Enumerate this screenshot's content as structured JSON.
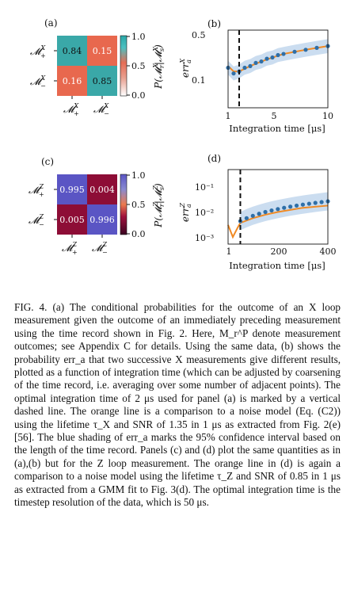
{
  "panels": {
    "a": {
      "label": "(a)",
      "rows": [
        "M+X",
        "M−X"
      ],
      "cols": [
        "M+X",
        "M−X"
      ],
      "values": [
        [
          0.84,
          0.15
        ],
        [
          0.16,
          0.85
        ]
      ],
      "value_labels": [
        [
          "0.84",
          "0.15"
        ],
        [
          "0.16",
          "0.85"
        ]
      ],
      "cbar_ticks": [
        "1.0",
        "0.5",
        "0.0"
      ],
      "cbar_label": "P(M_r^X | M_s^X)"
    },
    "c": {
      "label": "(c)",
      "rows": [
        "M+Z",
        "M−Z"
      ],
      "cols": [
        "M+Z",
        "M−Z"
      ],
      "values": [
        [
          0.995,
          0.004
        ],
        [
          0.005,
          0.996
        ]
      ],
      "value_labels": [
        [
          "0.995",
          "0.004"
        ],
        [
          "0.005",
          "0.996"
        ]
      ],
      "cbar_ticks": [
        "1.0",
        "0.5",
        "0.0"
      ],
      "cbar_label": "P(M_r^Z | M_s^Z)"
    },
    "b": {
      "label": "(b)",
      "ylabel": "err_a^X",
      "xlabel": "Integration time [μs]",
      "xticks": [
        "1",
        "5",
        "10"
      ],
      "yticks": [
        "0.5",
        "0.1"
      ]
    },
    "d": {
      "label": "(d)",
      "ylabel": "err_a^Z",
      "xlabel": "Integration time [μs]",
      "xticks": [
        "1",
        "200",
        "400"
      ],
      "yticks": [
        "10⁻¹",
        "10⁻²",
        "10⁻³"
      ]
    }
  },
  "chart_data": [
    {
      "type": "line",
      "panel": "b",
      "xlabel": "Integration time [μs]",
      "ylabel": "err_a^X",
      "xlim": [
        1,
        10
      ],
      "ylim": [
        0.05,
        0.6
      ],
      "yscale": "log",
      "dashed_marker_x": 2,
      "series": [
        {
          "kind": "points",
          "x": [
            1,
            1.5,
            2,
            2.5,
            3,
            3.5,
            4,
            4.5,
            5,
            5.5,
            6,
            7,
            8,
            9,
            10
          ],
          "y": [
            0.18,
            0.15,
            0.16,
            0.18,
            0.19,
            0.21,
            0.22,
            0.24,
            0.25,
            0.27,
            0.28,
            0.3,
            0.32,
            0.34,
            0.36
          ]
        },
        {
          "kind": "curve",
          "x": [
            1,
            1.5,
            2,
            3,
            4,
            5,
            6,
            8,
            10
          ],
          "y": [
            0.19,
            0.16,
            0.16,
            0.19,
            0.22,
            0.25,
            0.28,
            0.32,
            0.36
          ]
        }
      ]
    },
    {
      "type": "line",
      "panel": "d",
      "xlabel": "Integration time [μs]",
      "ylabel": "err_a^Z",
      "xlim": [
        1,
        400
      ],
      "ylim": [
        0.0007,
        0.2
      ],
      "yscale": "log",
      "dashed_marker_x": 50,
      "series": [
        {
          "kind": "points",
          "x": [
            50,
            75,
            100,
            125,
            150,
            175,
            200,
            225,
            250,
            275,
            300,
            325,
            350,
            375,
            400
          ],
          "y": [
            0.004,
            0.005,
            0.006,
            0.007,
            0.008,
            0.009,
            0.01,
            0.011,
            0.012,
            0.013,
            0.014,
            0.015,
            0.016,
            0.017,
            0.018
          ]
        },
        {
          "kind": "curve",
          "x": [
            1,
            20,
            40,
            50,
            100,
            150,
            200,
            300,
            400
          ],
          "y": [
            0.003,
            0.0012,
            0.0025,
            0.0035,
            0.005,
            0.0065,
            0.008,
            0.011,
            0.013
          ]
        }
      ]
    }
  ],
  "caption": {
    "label": "FIG. 4.",
    "text": "(a) The conditional probabilities for the outcome of an X loop measurement given the outcome of an immediately preceding measurement using the time record shown in Fig. 2. Here, M_r^P denote measurement outcomes; see Appendix C for details. Using the same data, (b) shows the probability err_a that two successive X measurements give different results, plotted as a function of integration time (which can be adjusted by coarsening of the time record, i.e. averaging over some number of adjacent points). The optimal integration time of 2 μs used for panel (a) is marked by a vertical dashed line. The orange line is a comparison to a noise model (Eq. (C2)) using the lifetime τ_X and SNR of 1.35 in 1 μs as extracted from Fig. 2(e) [56]. The blue shading of err_a marks the 95% confidence interval based on the length of the time record. Panels (c) and (d) plot the same quantities as in (a),(b) but for the Z loop measurement. The orange line in (d) is again a comparison to a noise model using the lifetime τ_Z and SNR of 0.85 in 1 μs as extracted from a GMM fit to Fig. 3(d). The optimal integration time is the timestep resolution of the data, which is 50 μs."
  }
}
